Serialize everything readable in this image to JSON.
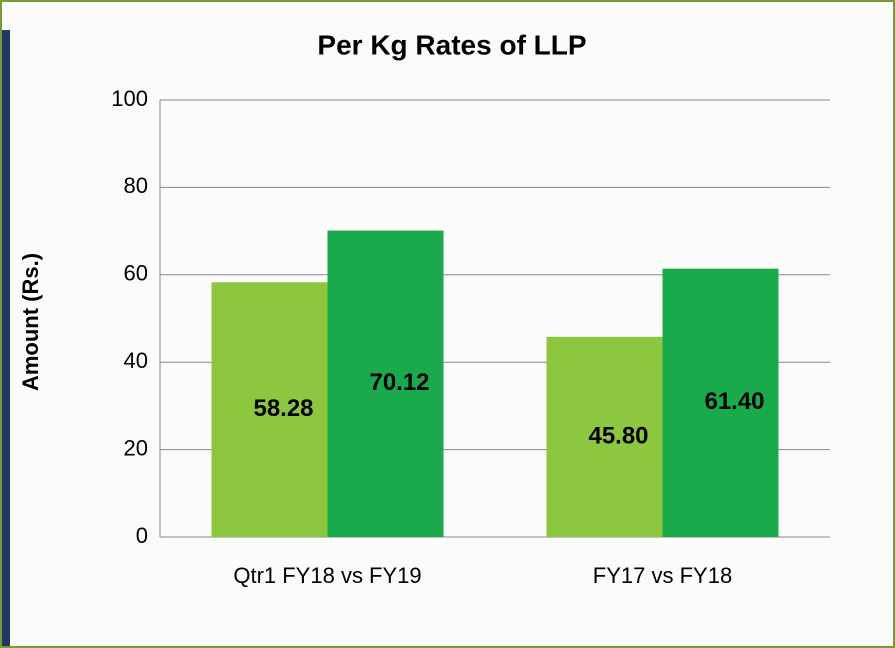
{
  "chart_data": {
    "type": "bar",
    "title": "Per Kg Rates of LLP",
    "y_label": "Amount (Rs.)",
    "categories": [
      "Qtr1 FY18 vs FY19",
      "FY17 vs FY18"
    ],
    "series": [
      {
        "color": "#8dc63f",
        "values": [
          58.28,
          45.8
        ],
        "value_labels": [
          "58.28",
          "45.80"
        ]
      },
      {
        "color": "#1aaa4b",
        "values": [
          70.12,
          61.4
        ],
        "value_labels": [
          "70.12",
          "61.40"
        ]
      }
    ],
    "ylim": [
      0,
      100
    ],
    "yticks": [
      0,
      20,
      40,
      60,
      80,
      100
    ],
    "grid": true
  }
}
